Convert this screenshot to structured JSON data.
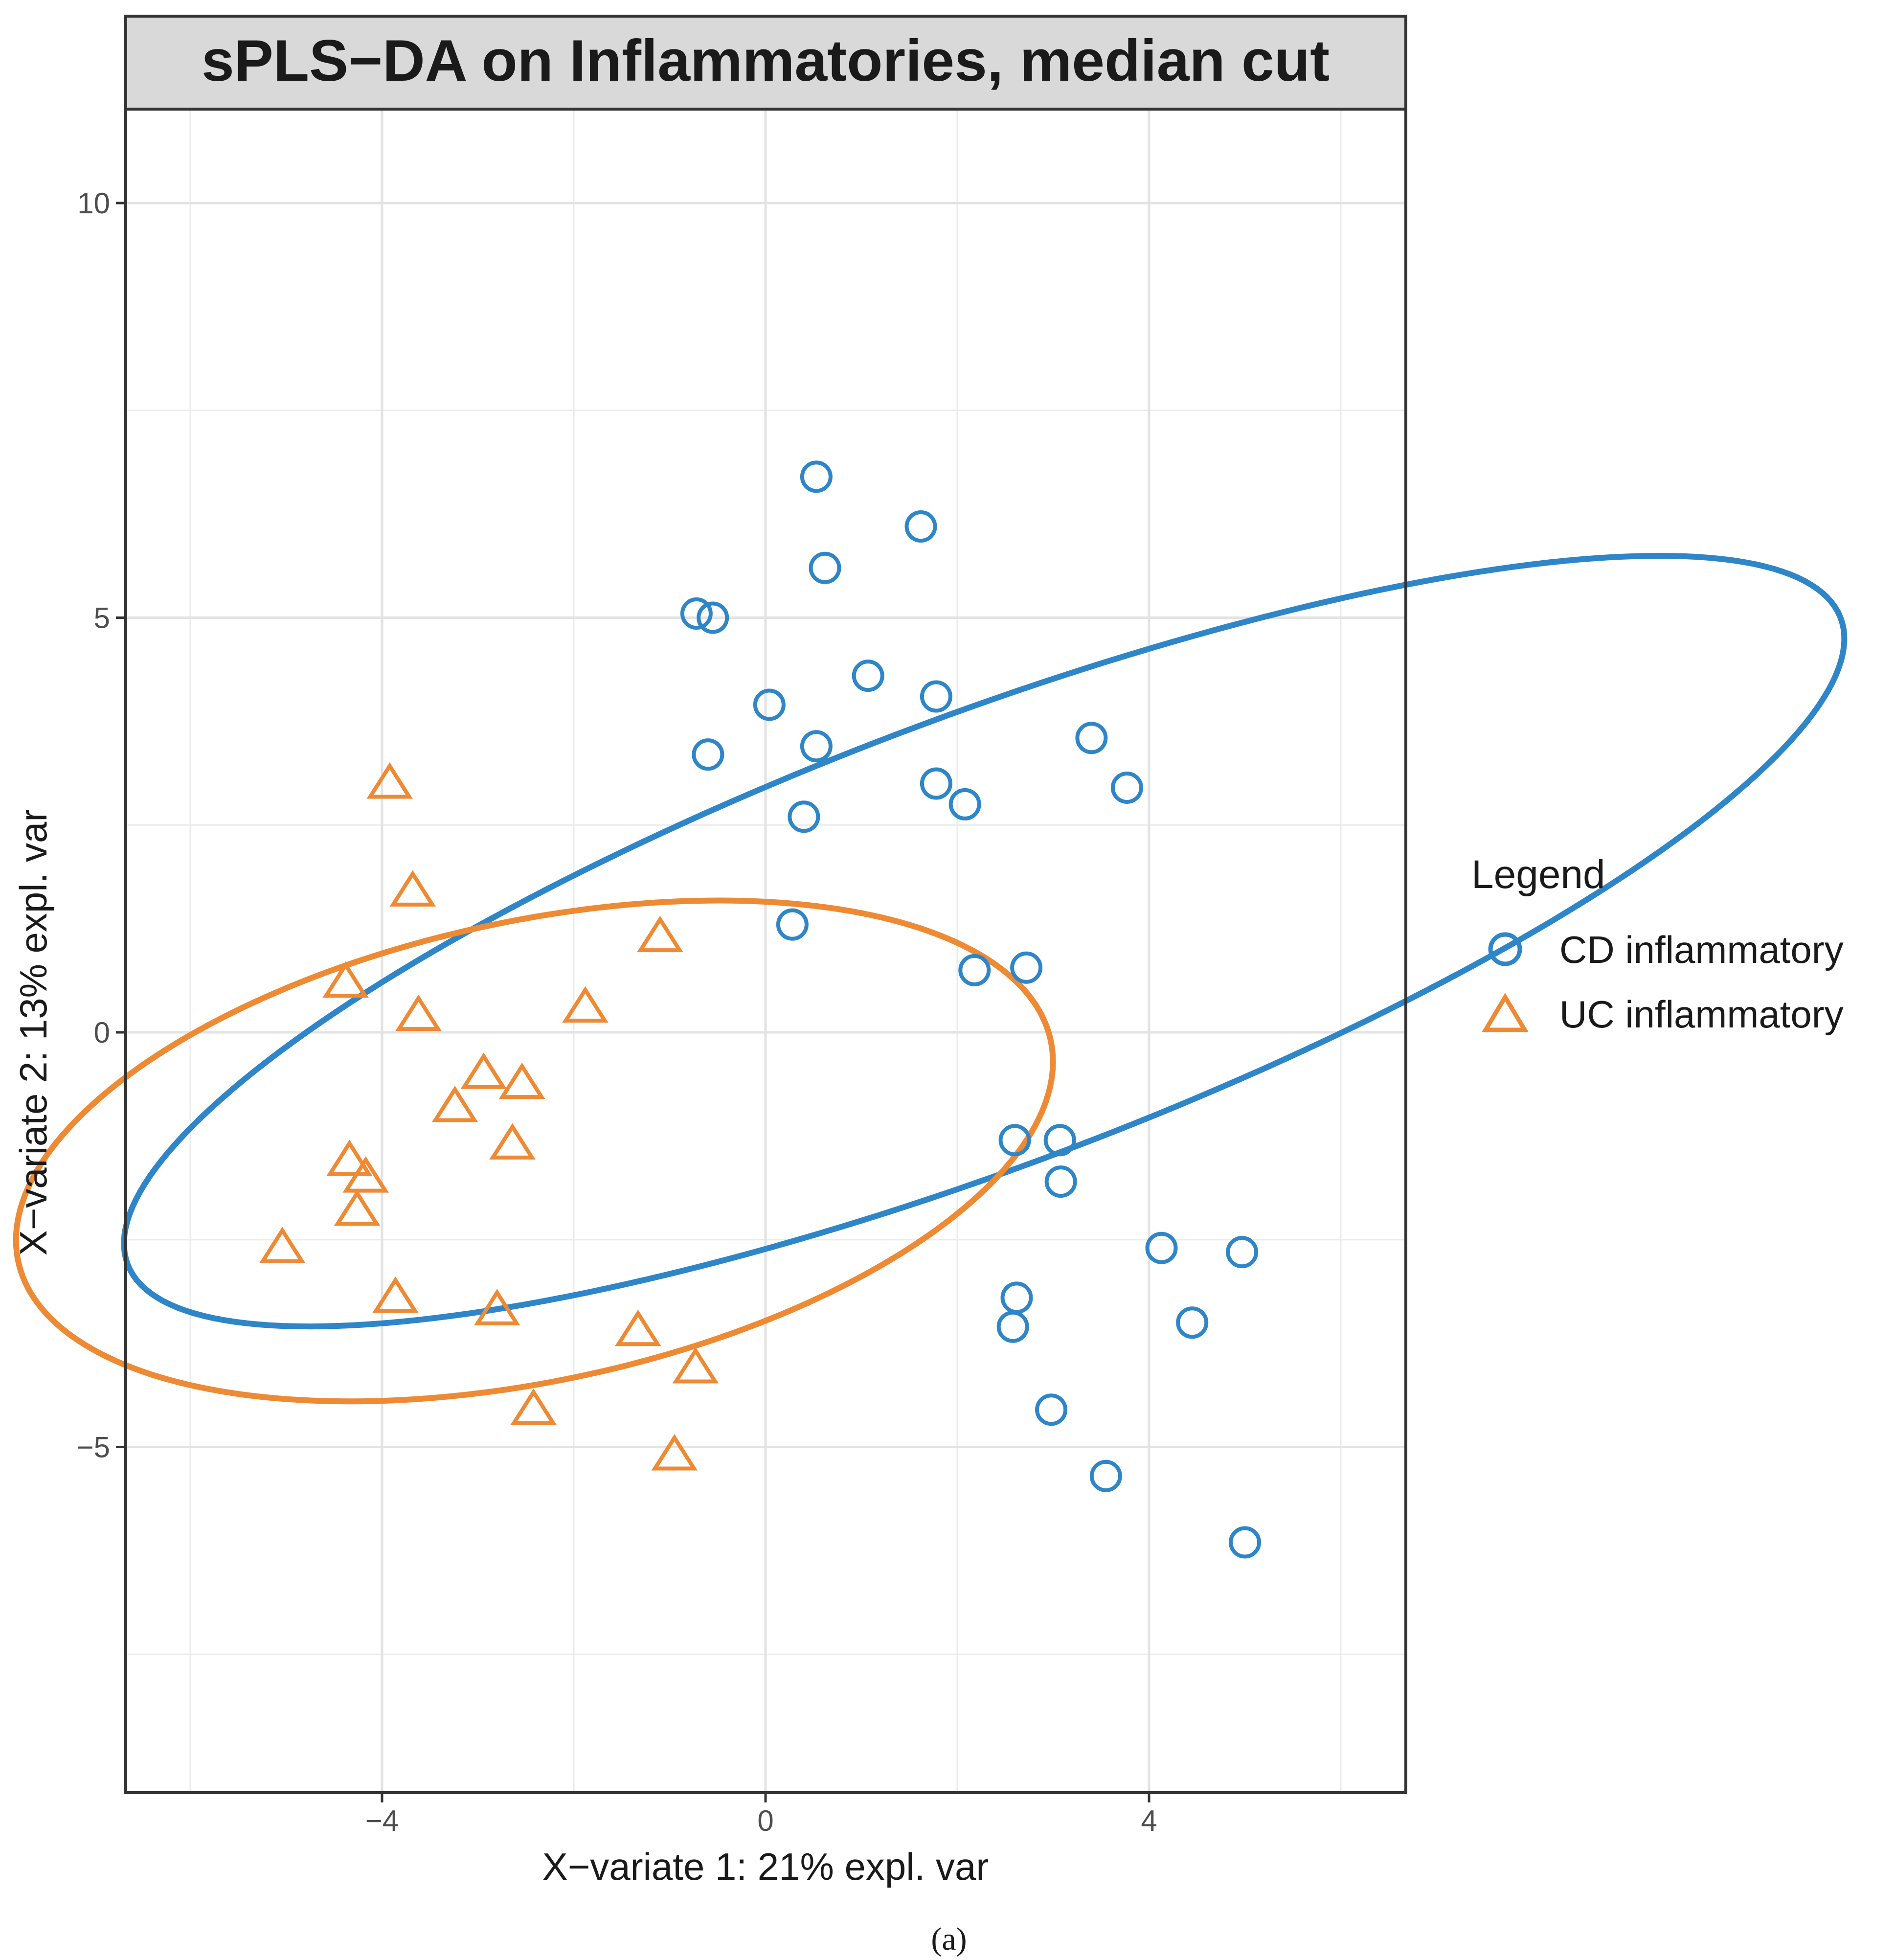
{
  "chart_data": {
    "type": "scatter",
    "title": "sPLS−DA on Inflammatories, median cut",
    "xlabel": "X−variate 1: 21% expl. var",
    "ylabel": "X−variate 2: 13% expl. var",
    "xlim": [
      -6.8,
      6.7
    ],
    "ylim": [
      -9.1,
      11.2
    ],
    "x_ticks": [
      -4,
      0,
      4
    ],
    "x_tick_labels": [
      "−4",
      "0",
      "4"
    ],
    "y_ticks": [
      -5,
      0,
      5,
      10
    ],
    "y_tick_labels": [
      "−5",
      "0",
      "5",
      "10"
    ],
    "grid": true,
    "legend": {
      "title": "Legend",
      "position": "right"
    },
    "series": [
      {
        "name": "CD inflammatory",
        "marker": "circle",
        "color": "#2e86c8",
        "points": [
          [
            0.53,
            6.7
          ],
          [
            1.62,
            6.1
          ],
          [
            0.62,
            5.6
          ],
          [
            -0.72,
            5.05
          ],
          [
            -0.55,
            5.0
          ],
          [
            1.07,
            4.3
          ],
          [
            1.78,
            4.05
          ],
          [
            0.04,
            3.95
          ],
          [
            0.53,
            3.45
          ],
          [
            -0.6,
            3.35
          ],
          [
            3.4,
            3.55
          ],
          [
            3.77,
            2.95
          ],
          [
            1.78,
            3.0
          ],
          [
            2.08,
            2.75
          ],
          [
            0.4,
            2.6
          ],
          [
            0.28,
            1.3
          ],
          [
            2.18,
            0.75
          ],
          [
            2.72,
            0.78
          ],
          [
            2.6,
            -1.3
          ],
          [
            3.07,
            -1.3
          ],
          [
            3.08,
            -1.8
          ],
          [
            4.13,
            -2.6
          ],
          [
            4.97,
            -2.65
          ],
          [
            2.62,
            -3.2
          ],
          [
            2.58,
            -3.55
          ],
          [
            4.45,
            -3.5
          ],
          [
            2.98,
            -4.55
          ],
          [
            3.55,
            -5.35
          ],
          [
            5.0,
            -6.15
          ]
        ],
        "ellipse": {
          "center": [
            2.28,
            1.1
          ],
          "semi_axes": [
            9.75,
            2.65
          ],
          "angle_deg": -66
        }
      },
      {
        "name": "UC inflammatory",
        "marker": "triangle",
        "color": "#ee8a34",
        "points": [
          [
            -3.92,
            3.0
          ],
          [
            -3.68,
            1.7
          ],
          [
            -1.1,
            1.15
          ],
          [
            -4.38,
            0.6
          ],
          [
            -3.62,
            0.2
          ],
          [
            -1.88,
            0.3
          ],
          [
            -2.94,
            -0.5
          ],
          [
            -2.54,
            -0.62
          ],
          [
            -3.24,
            -0.9
          ],
          [
            -2.64,
            -1.35
          ],
          [
            -4.34,
            -1.55
          ],
          [
            -4.17,
            -1.75
          ],
          [
            -4.26,
            -2.15
          ],
          [
            -5.04,
            -2.6
          ],
          [
            -3.86,
            -3.2
          ],
          [
            -2.8,
            -3.35
          ],
          [
            -1.33,
            -3.6
          ],
          [
            -0.73,
            -4.05
          ],
          [
            -2.42,
            -4.55
          ],
          [
            -0.95,
            -5.1
          ]
        ],
        "ellipse": {
          "center": [
            -2.41,
            -1.43
          ],
          "semi_axes": [
            5.55,
            2.75
          ],
          "angle_deg": -75
        }
      }
    ]
  },
  "caption": "(a)"
}
